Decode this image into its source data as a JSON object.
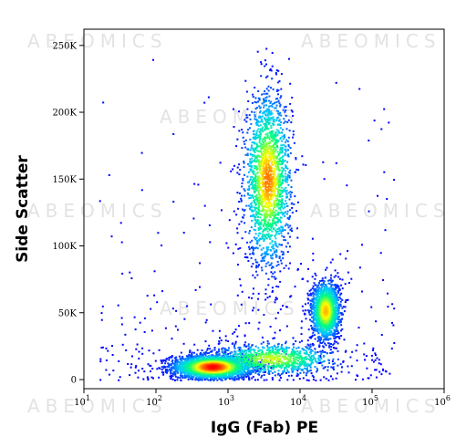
{
  "chart_data": {
    "type": "scatter",
    "subtype": "flow-cytometry-density-dot-plot",
    "xlabel": "IgG (Fab) PE",
    "ylabel": "Side Scatter",
    "x_scale": "log",
    "xlim": [
      10,
      1000000
    ],
    "ylim": [
      0,
      262144
    ],
    "x_ticks": [
      {
        "value": 10,
        "base": "10",
        "exp": "1"
      },
      {
        "value": 100,
        "base": "10",
        "exp": "2"
      },
      {
        "value": 1000,
        "base": "10",
        "exp": "3"
      },
      {
        "value": 10000,
        "base": "10",
        "exp": "4"
      },
      {
        "value": 100000,
        "base": "10",
        "exp": "5"
      },
      {
        "value": 1000000,
        "base": "10",
        "exp": "6"
      }
    ],
    "y_ticks": [
      {
        "value": 0,
        "label": "0"
      },
      {
        "value": 50000,
        "label": "50K"
      },
      {
        "value": 100000,
        "label": "100K"
      },
      {
        "value": 150000,
        "label": "150K"
      },
      {
        "value": 200000,
        "label": "200K"
      },
      {
        "value": 250000,
        "label": "250K"
      }
    ],
    "grid": false,
    "legend": "none",
    "color_scale": [
      "#0000ff",
      "#00c8ff",
      "#00ff80",
      "#ffff00",
      "#ff0000"
    ],
    "populations": [
      {
        "x_center": 600,
        "y_center": 10000,
        "log_sd_x": 0.28,
        "sd_y": 4500,
        "relative_density": 1.0
      },
      {
        "x_center": 3500,
        "y_center": 150000,
        "log_sd_x": 0.16,
        "sd_y": 32000,
        "relative_density": 0.75
      },
      {
        "x_center": 22000,
        "y_center": 52000,
        "log_sd_x": 0.1,
        "sd_y": 11000,
        "relative_density": 0.6
      },
      {
        "x_center": 4000,
        "y_center": 16000,
        "log_sd_x": 0.45,
        "sd_y": 6000,
        "relative_density": 0.35
      }
    ]
  },
  "watermark": "ABEOMICS"
}
